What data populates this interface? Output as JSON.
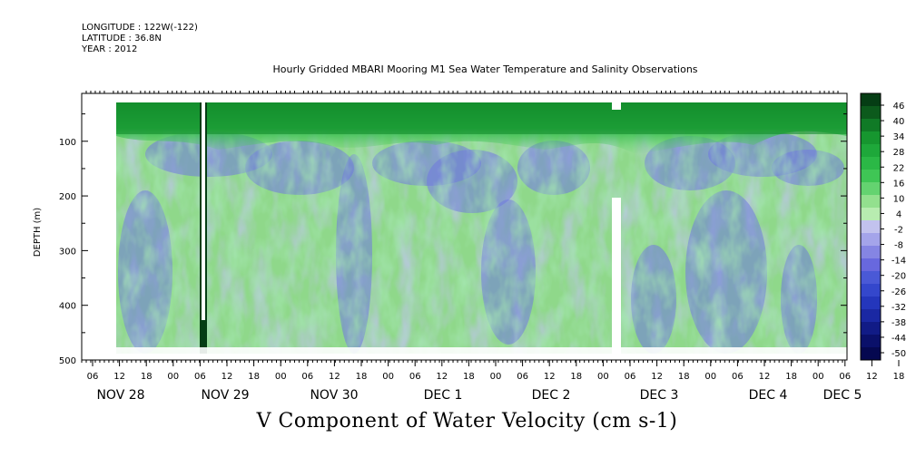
{
  "header": {
    "longitude": "LONGITUDE : 122W(-122)",
    "latitude": "LATITUDE : 36.8N",
    "year": "YEAR : 2012"
  },
  "chart_data": {
    "type": "heatmap",
    "title": "Hourly Gridded MBARI Mooring M1 Sea Water Temperature and Salinity Observations",
    "subtitle": "V Component of Water Velocity (cm s-1)",
    "ylabel": "DEPTH (m)",
    "xlabel": "",
    "y_ticks": [
      100,
      200,
      300,
      400,
      500
    ],
    "ylim": [
      500,
      10
    ],
    "y_inverted": true,
    "x_hour_ticks": [
      "06",
      "12",
      "18",
      "00",
      "06",
      "12",
      "18",
      "00",
      "06",
      "12",
      "18",
      "00",
      "06",
      "12",
      "18",
      "00",
      "06",
      "12",
      "18",
      "00",
      "06",
      "12",
      "18",
      "00",
      "06",
      "12",
      "18",
      "00",
      "06",
      "12",
      "18",
      "00"
    ],
    "x_date_labels": [
      "NOV 28",
      "NOV 29",
      "NOV 30",
      "DEC 1",
      "DEC 2",
      "DEC 3",
      "DEC 4",
      "DEC 5"
    ],
    "colorbar_levels": [
      "46",
      "40",
      "34",
      "28",
      "22",
      "16",
      "10",
      "4",
      "-2",
      "-8",
      "-14",
      "-20",
      "-26",
      "-32",
      "-38",
      "-44",
      "-50"
    ],
    "colorbar_colors": [
      "#053d14",
      "#0c5a1c",
      "#107a26",
      "#16962f",
      "#1ea83a",
      "#2bb846",
      "#3fc655",
      "#64d370",
      "#93e08e",
      "#b8ecb0",
      "#c2c2ee",
      "#a4a4ea",
      "#8585e3",
      "#6868de",
      "#4a59d6",
      "#3447cc",
      "#2436bc",
      "#1a28a3",
      "#111b86",
      "#0a106a",
      "#050850"
    ],
    "gaps_in_record": [
      "NOV 29 ~04h (vertical dark band)",
      "DEC 2 ~22h (white gap below 200 m)"
    ],
    "structure": {
      "surface_layer": "positive (green) from ~10 m to ~100-140 m throughout",
      "subsurface": "negative (blue/purple) core ~120-200 m on Nov 29-30 and Dec 1-4",
      "deep": "mixed weak positive/negative patches from 250 m to ~470 m"
    }
  }
}
